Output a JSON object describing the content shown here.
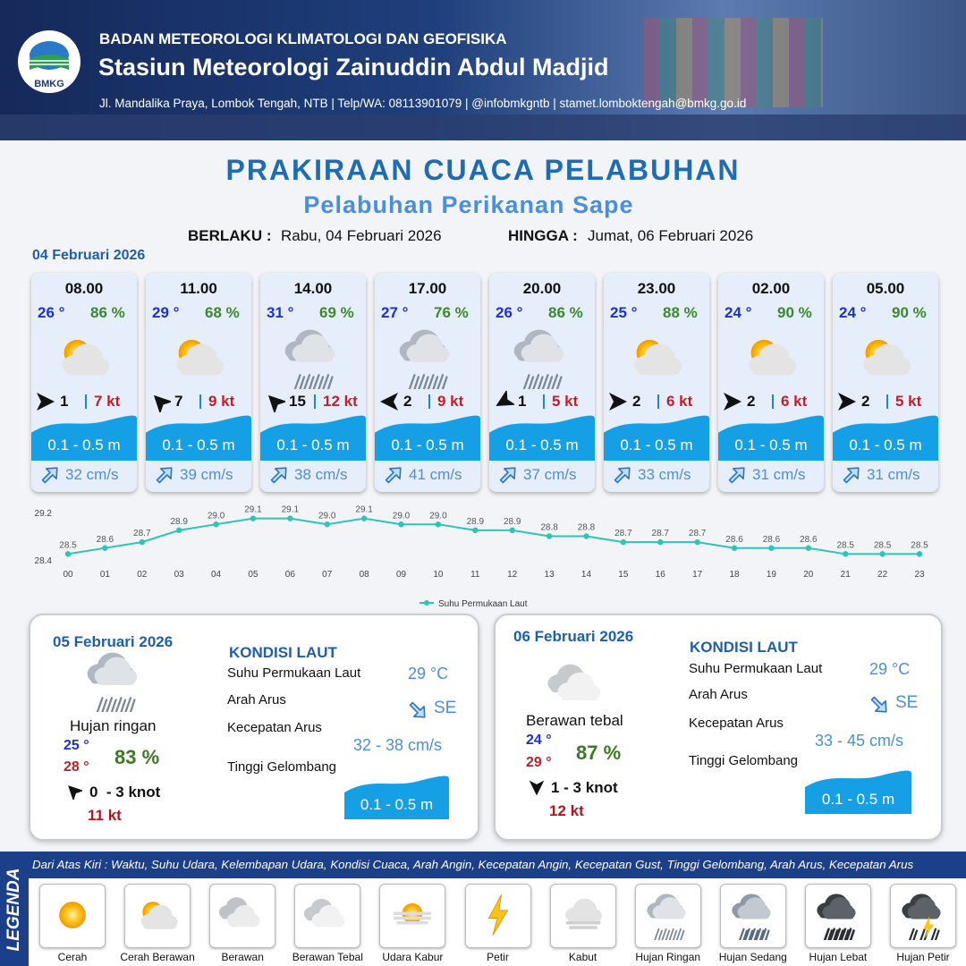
{
  "header": {
    "logo": "BMKG",
    "organization": "BADAN METEOROLOGI KLIMATOLOGI DAN GEOFISIKA",
    "station": "Stasiun Meteorologi Zainuddin Abdul Madjid",
    "address": "Jl. Mandalika Praya, Lombok Tengah, NTB | Telp/WA: 08113901079 | @infobmkgntb | stamet.lomboktengah@bmkg.go.id"
  },
  "title": "PRAKIRAAN CUACA PELABUHAN",
  "subtitle": "Pelabuhan Perikanan Sape",
  "validity": {
    "from_label": "BERLAKU :",
    "from": "Rabu, 04 Februari 2026",
    "to_label": "HINGGA :",
    "to": "Jumat, 06 Februari 2026"
  },
  "day1": {
    "date": "04 Februari 2026",
    "slots": [
      {
        "time": "08.00",
        "temp": "26 °",
        "humidity": "86 %",
        "wind": "1",
        "gust": "7 kt",
        "wave": "0.1 - 0.5 m",
        "current": "32 cm/s"
      },
      {
        "time": "11.00",
        "temp": "29 °",
        "humidity": "68 %",
        "wind": "7",
        "gust": "9 kt",
        "wave": "0.1 - 0.5 m",
        "current": "39 cm/s"
      },
      {
        "time": "14.00",
        "temp": "31 °",
        "humidity": "69 %",
        "wind": "15",
        "gust": "12 kt",
        "wave": "0.1 - 0.5 m",
        "current": "38 cm/s"
      },
      {
        "time": "17.00",
        "temp": "27 °",
        "humidity": "76 %",
        "wind": "2",
        "gust": "9 kt",
        "wave": "0.1 - 0.5 m",
        "current": "41 cm/s"
      },
      {
        "time": "20.00",
        "temp": "26 °",
        "humidity": "86 %",
        "wind": "1",
        "gust": "5 kt",
        "wave": "0.1 - 0.5 m",
        "current": "37 cm/s"
      },
      {
        "time": "23.00",
        "temp": "25 °",
        "humidity": "88 %",
        "wind": "2",
        "gust": "6 kt",
        "wave": "0.1 - 0.5 m",
        "current": "33 cm/s"
      },
      {
        "time": "02.00",
        "temp": "24 °",
        "humidity": "90 %",
        "wind": "2",
        "gust": "6 kt",
        "wave": "0.1 - 0.5 m",
        "current": "31 cm/s"
      },
      {
        "time": "05.00",
        "temp": "24 °",
        "humidity": "90 %",
        "wind": "2",
        "gust": "5 kt",
        "wave": "0.1 - 0.5 m",
        "current": "31 cm/s"
      }
    ]
  },
  "chart_data": {
    "type": "line",
    "categories": [
      "00",
      "01",
      "02",
      "03",
      "04",
      "05",
      "06",
      "07",
      "08",
      "09",
      "10",
      "11",
      "12",
      "13",
      "14",
      "15",
      "16",
      "17",
      "18",
      "19",
      "20",
      "21",
      "22",
      "23"
    ],
    "series": [
      {
        "name": "Suhu Permukaan Laut",
        "color": "#2ec4b6",
        "values": [
          28.5,
          28.6,
          28.7,
          28.9,
          29.0,
          29.1,
          29.1,
          29.0,
          29.1,
          29.0,
          29.0,
          28.9,
          28.9,
          28.8,
          28.8,
          28.7,
          28.7,
          28.7,
          28.6,
          28.6,
          28.6,
          28.5,
          28.5,
          28.5
        ],
        "value_labels": [
          "28.5",
          "28.6",
          "28.7",
          "28.9",
          "29.0",
          "29.1",
          "29.1",
          "29.0",
          "29.1",
          "29.0",
          "29.0",
          "28.9",
          "28.9",
          "28.8",
          "28.8",
          "28.7",
          "28.7",
          "28.7",
          "28.6",
          "28.6",
          "28.6",
          "28.5",
          "28.5",
          "28.5"
        ]
      }
    ],
    "ylim": [
      28.4,
      29.2
    ],
    "yticks": [
      28.4,
      29.2
    ],
    "legend": "bottom"
  },
  "days": [
    {
      "date": "05 Februari 2026",
      "condition": "Hujan ringan",
      "temp_min": "25 °",
      "temp_max": "28 °",
      "humidity": "83 %",
      "wind": "0  - 3 knot",
      "gust": "11 kt",
      "sea": {
        "heading": "KONDISI LAUT",
        "sst_label": "Suhu Permukaan Laut",
        "sst": "29 °C",
        "dir_label": "Arah Arus",
        "dir": "SE",
        "speed_label": "Kecepatan Arus",
        "speed": "32 - 38 cm/s",
        "wave_label": "Tinggi Gelombang",
        "wave": "0.1 - 0.5 m"
      }
    },
    {
      "date": "06 Februari 2026",
      "condition": "Berawan tebal",
      "temp_min": "24 °",
      "temp_max": "29 °",
      "humidity": "87 %",
      "wind": "1 - 3 knot",
      "gust": "12 kt",
      "sea": {
        "heading": "KONDISI LAUT",
        "sst_label": "Suhu Permukaan Laut",
        "sst": "29 °C",
        "dir_label": "Arah Arus",
        "dir": "SE",
        "speed_label": "Kecepatan Arus",
        "speed": "33 - 45 cm/s",
        "wave_label": "Tinggi Gelombang",
        "wave": "0.1 - 0.5 m"
      }
    }
  ],
  "legend": {
    "title": "LEGENDA",
    "description": "Dari Atas Kiri : Waktu, Suhu Udara, Kelembapan Udara, Kondisi Cuaca, Arah Angin, Kecepatan Angin, Kecepatan Gust, Tinggi Gelombang, Arah Arus, Kecepatan Arus",
    "items": [
      "Cerah",
      "Cerah Berawan",
      "Berawan",
      "Berawan Tebal",
      "Udara Kabur",
      "Petir",
      "Kabut",
      "Hujan Ringan",
      "Hujan Sedang",
      "Hujan Lebat",
      "Hujan Petir"
    ]
  }
}
